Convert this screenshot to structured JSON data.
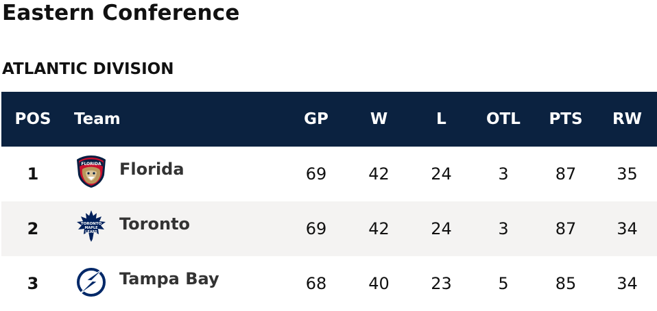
{
  "conference": {
    "title": "Eastern Conference"
  },
  "division": {
    "title": "ATLANTIC DIVISION"
  },
  "table": {
    "headers": {
      "pos": "POS",
      "team": "Team",
      "gp": "GP",
      "w": "W",
      "l": "L",
      "otl": "OTL",
      "pts": "PTS",
      "rw": "RW"
    },
    "rows": [
      {
        "pos": "1",
        "team": "Florida",
        "logo": "florida-panthers-logo",
        "gp": "69",
        "w": "42",
        "l": "24",
        "otl": "3",
        "pts": "87",
        "rw": "35"
      },
      {
        "pos": "2",
        "team": "Toronto",
        "logo": "toronto-maple-leafs-logo",
        "gp": "69",
        "w": "42",
        "l": "24",
        "otl": "3",
        "pts": "87",
        "rw": "34"
      },
      {
        "pos": "3",
        "team": "Tampa Bay",
        "logo": "tampa-bay-lightning-logo",
        "gp": "68",
        "w": "40",
        "l": "23",
        "otl": "5",
        "pts": "85",
        "rw": "34"
      }
    ]
  },
  "colors": {
    "header_bg": "#0b2240",
    "alt_row_bg": "#f4f3f2",
    "florida_red": "#c8102e",
    "toronto_blue": "#00205b",
    "tampa_blue": "#002868"
  }
}
